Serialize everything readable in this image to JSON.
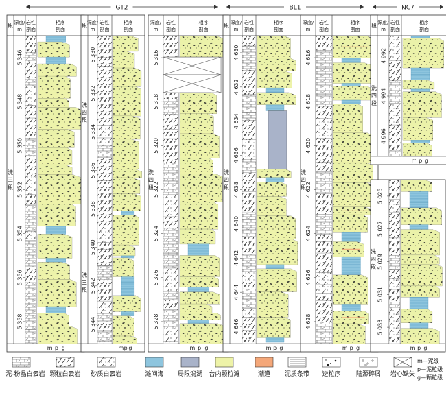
{
  "wells": [
    {
      "name": "GT2"
    },
    {
      "name": "BL1"
    },
    {
      "name": "NC7"
    }
  ],
  "columns": [
    {
      "id": "c1",
      "headers": {
        "segment": "段",
        "depth": "深度/m",
        "lith": "岩性剖面",
        "facies": "相序剖面"
      },
      "segment_label": "洗三段",
      "depths": [
        "5 346",
        "5 348",
        "5 350",
        "5 352",
        "5 354",
        "5 356",
        "5 358"
      ]
    },
    {
      "id": "c2",
      "headers": {
        "segment": "段",
        "depth": "深度/m",
        "lith": "岩性剖面",
        "facies": "相序剖面"
      },
      "segment_label": "洗四段",
      "segment_label2": "洗三段",
      "depths": [
        "5 330",
        "5 332",
        "5 334",
        "5 336",
        "5 338",
        "5 340",
        "5 342",
        "5 344"
      ]
    },
    {
      "id": "c3",
      "headers": {
        "depth": "深度/m",
        "lith": "岩性剖面",
        "facies": "相序剖面"
      },
      "segment_label": "洗四段",
      "depths": [
        "5 316",
        "5 318",
        "5 320",
        "5 322",
        "5 324",
        "5 326",
        "5 328"
      ]
    },
    {
      "id": "c4",
      "headers": {
        "segment": "段",
        "depth": "深度/m",
        "lith": "岩性剖面",
        "facies": "相序剖面"
      },
      "segment_label": "洗四段",
      "depths": [
        "4 630",
        "4 632",
        "4 634",
        "4 636",
        "4 638",
        "4 640",
        "4 642",
        "4 644",
        "4 646"
      ]
    },
    {
      "id": "c5",
      "headers": {
        "depth": "深度/m",
        "lith": "岩性剖面",
        "facies": "相序剖面"
      },
      "segment_label": "洗四段",
      "depths": [
        "4 616",
        "4 618",
        "4 620",
        "4 622",
        "4 624",
        "4 626",
        "4 628"
      ]
    },
    {
      "id": "c6",
      "headers": {
        "segment": "段",
        "depth": "深度/m",
        "lith": "岩性剖面",
        "facies": "相序剖面"
      },
      "segment_label": "洗四段",
      "depths": [
        "4 992",
        "4 994",
        "4 996"
      ]
    },
    {
      "id": "c7",
      "segment_label": "洗四段",
      "depths": [
        "5 025",
        "5 027",
        "5 029",
        "5 031",
        "5 033"
      ]
    }
  ],
  "grain_axis": {
    "m": "m",
    "p": "p",
    "g": "g"
  },
  "legend": [
    {
      "label": "泥-粉晶白云岩",
      "pattern": "mud"
    },
    {
      "label": "颗粒白云岩",
      "pattern": "grain"
    },
    {
      "label": "砂质白云岩",
      "pattern": "sandy"
    },
    {
      "label": "滩间海",
      "pattern": "interbank"
    },
    {
      "label": "局限潟湖",
      "pattern": "lagoon"
    },
    {
      "label": "台内颗粒滩",
      "pattern": "shoal"
    },
    {
      "label": "潮道",
      "pattern": "channel"
    },
    {
      "label": "泥质条带",
      "pattern": "mudband"
    },
    {
      "label": "逆粒序",
      "pattern": "reverse"
    },
    {
      "label": "陆源碎屑",
      "pattern": "terrig"
    },
    {
      "label": "岩心缺失",
      "pattern": "missing"
    }
  ],
  "grain_key": [
    "m—泥级",
    "p—泥粒级",
    "g—颗粒级"
  ],
  "colors": {
    "interbank": "#8ec5de",
    "lagoon": "#a9b3c9",
    "shoal": "#eef3a8",
    "shoal_top": "#cfe6b0",
    "channel": "#f4a779"
  }
}
